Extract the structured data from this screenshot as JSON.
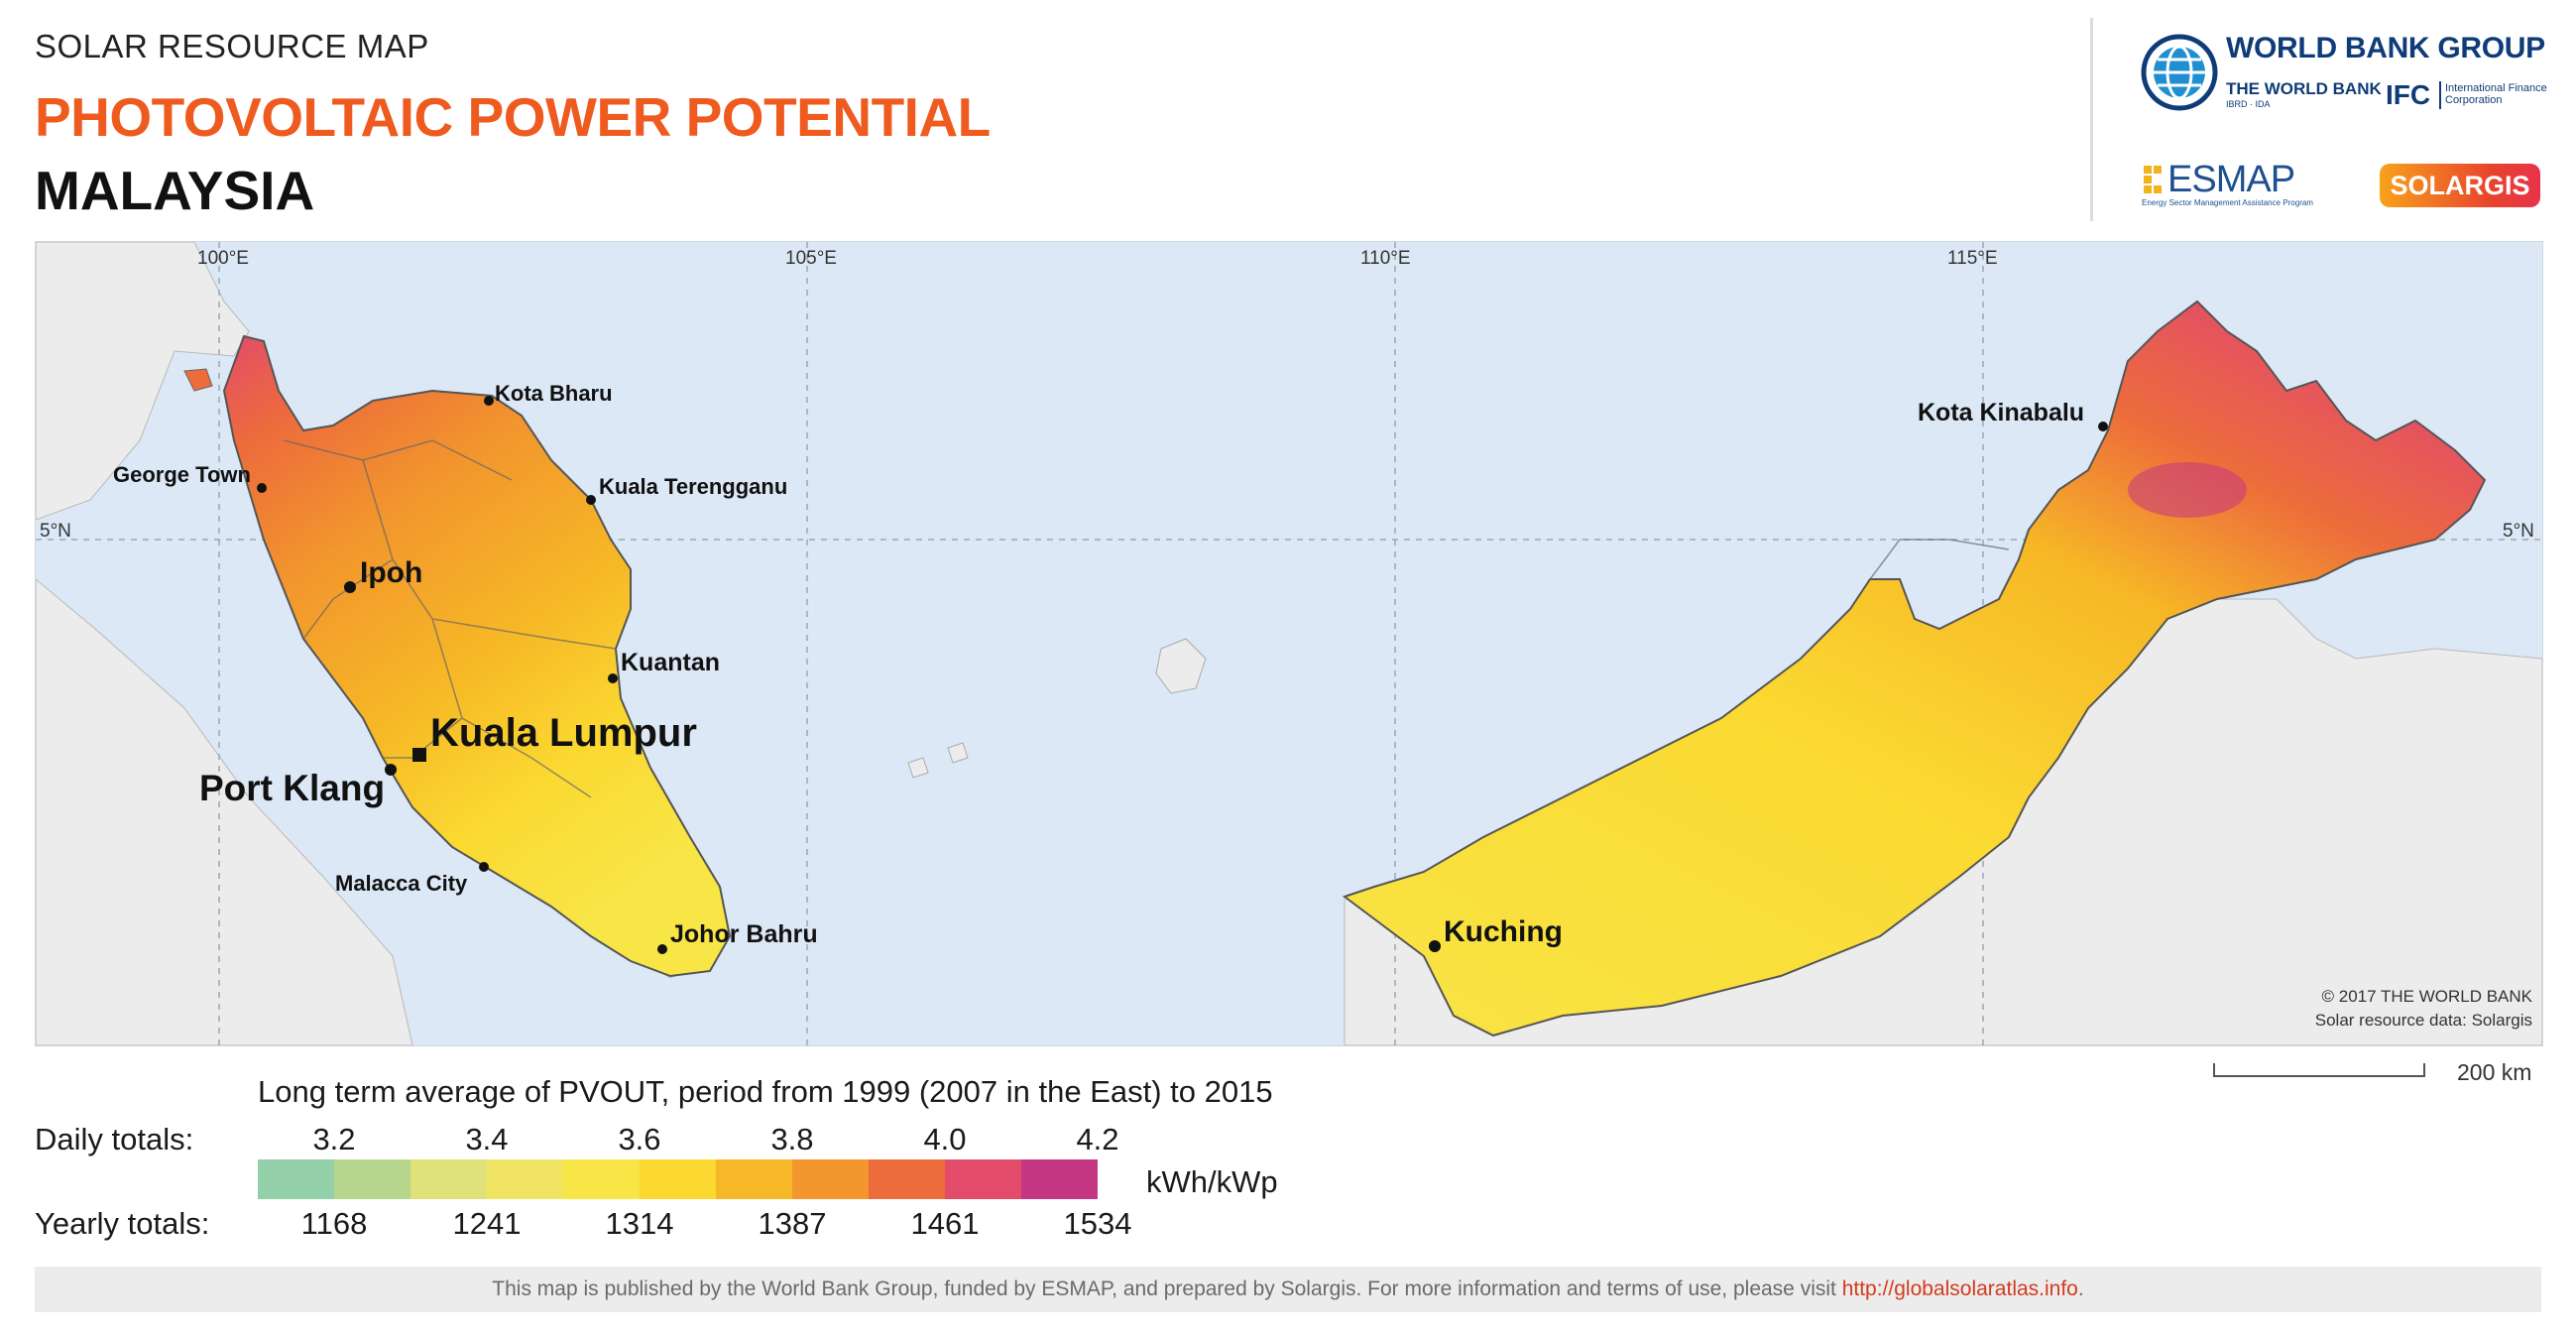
{
  "header": {
    "supertitle": "SOLAR RESOURCE MAP",
    "title": "PHOTOVOLTAIC POWER POTENTIAL",
    "country": "MALAYSIA"
  },
  "logos": {
    "world_bank_group": "WORLD BANK GROUP",
    "the_world_bank": "THE WORLD BANK",
    "ibrd_ida": "IBRD · IDA",
    "ifc": "IFC",
    "ifc_sub": "International Finance Corporation",
    "esmap": "ESMAP",
    "esmap_sub": "Energy Sector Management Assistance Program",
    "solargis": "SOLARGIS"
  },
  "map": {
    "colors": {
      "sea": "#dce8f6",
      "land_other": "#ececec",
      "border": "#6b6b6b"
    },
    "longitudes": [
      "100°E",
      "105°E",
      "110°E",
      "115°E"
    ],
    "latitude": "5°N",
    "cities": [
      {
        "name": "Kota Bharu"
      },
      {
        "name": "George Town"
      },
      {
        "name": "Kuala Terengganu"
      },
      {
        "name": "Ipoh"
      },
      {
        "name": "Kuantan"
      },
      {
        "name": "Kuala Lumpur"
      },
      {
        "name": "Port Klang"
      },
      {
        "name": "Malacca City"
      },
      {
        "name": "Johor Bahru"
      },
      {
        "name": "Kota Kinabalu"
      },
      {
        "name": "Kuching"
      }
    ],
    "copyright": "© 2017 THE WORLD BANK",
    "credit": "Solar resource data: Solargis"
  },
  "legend": {
    "title": "Long term average of PVOUT, period from 1999 (2007 in the East) to 2015",
    "daily_label": "Daily totals:",
    "yearly_label": "Yearly totals:",
    "daily_values": [
      "3.2",
      "3.4",
      "3.6",
      "3.8",
      "4.0",
      "4.2"
    ],
    "yearly_values": [
      "1168",
      "1241",
      "1314",
      "1387",
      "1461",
      "1534"
    ],
    "unit": "kWh/kWp",
    "colors": [
      "#93cfa9",
      "#b6d68e",
      "#dfe27a",
      "#f2e463",
      "#f8e546",
      "#fbd931",
      "#f6b826",
      "#f2962d",
      "#ed6c3b",
      "#e24c6a",
      "#c43782"
    ]
  },
  "scale": {
    "label": "200 km"
  },
  "footer": {
    "text": "This map is published by the World Bank Group, funded by ESMAP, and prepared by Solargis. For more information and terms of use, please visit ",
    "link": "http://globalsolaratlas.info",
    "end": "."
  }
}
